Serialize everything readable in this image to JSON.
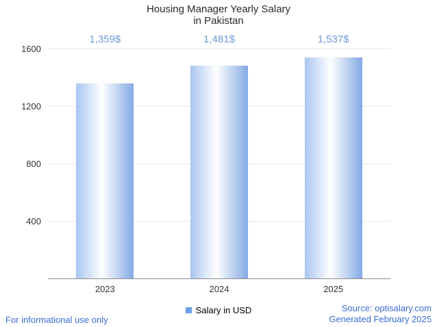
{
  "chart_data": {
    "type": "bar",
    "title": "Housing Manager Yearly Salary",
    "subtitle": "in Pakistan",
    "categories": [
      "2023",
      "2024",
      "2025"
    ],
    "values": [
      1359,
      1481,
      1537
    ],
    "value_labels": [
      "1,359$",
      "1,481$",
      "1,537$"
    ],
    "ylim": [
      0,
      1600
    ],
    "yticks": [
      400,
      800,
      1200,
      1600
    ],
    "grid": true,
    "legend": {
      "label": "Salary in USD",
      "position": "bottom"
    },
    "colors": {
      "bar_gradient_left": "#a9c6f0",
      "bar_gradient_mid": "#ffffff",
      "bar_gradient_right": "#84a9e4",
      "value_label": "#6e9ad9",
      "legend_swatch": "#6d9eeb",
      "axis_text": "#333333",
      "gridline": "#e6e6e6",
      "axis_line": "#8f8f8f"
    }
  },
  "footer": {
    "left": "For informational use only",
    "source": "Source: optisalary.com",
    "generated": "Generated February 2025",
    "color": "#3b6bd6"
  }
}
